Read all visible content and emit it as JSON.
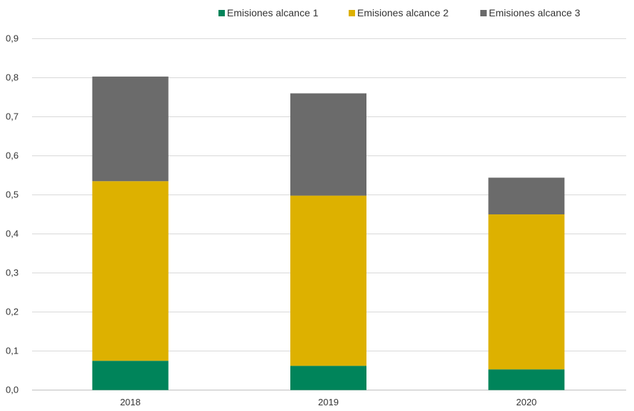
{
  "chart_data": {
    "type": "bar",
    "stacked": true,
    "categories": [
      "2018",
      "2019",
      "2020"
    ],
    "series": [
      {
        "name": "Emisiones alcance 1",
        "values": [
          0.075,
          0.062,
          0.053
        ],
        "color": "#00845A"
      },
      {
        "name": "Emisiones alcance 2",
        "values": [
          0.46,
          0.436,
          0.397
        ],
        "color": "#DDB100"
      },
      {
        "name": "Emisiones alcance 3",
        "values": [
          0.268,
          0.262,
          0.094
        ],
        "color": "#6B6B6B"
      }
    ],
    "ylim": [
      0,
      0.9
    ],
    "yticks": [
      0,
      0.1,
      0.2,
      0.3,
      0.4,
      0.5,
      0.6,
      0.7,
      0.8,
      0.9
    ],
    "ytick_labels": [
      "0,0",
      "0,1",
      "0,2",
      "0,3",
      "0,4",
      "0,5",
      "0,6",
      "0,7",
      "0,8",
      "0,9"
    ],
    "grid": true,
    "legend_position": "top"
  }
}
